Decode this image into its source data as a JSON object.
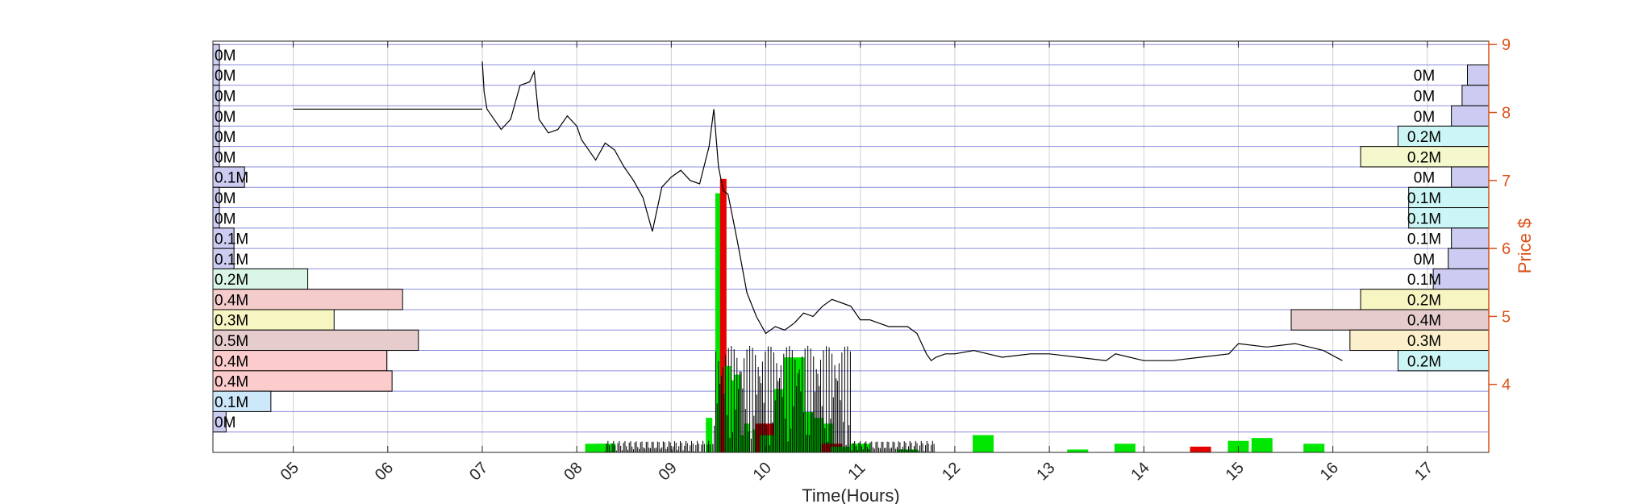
{
  "chart_data": {
    "type": "line",
    "xlabel": "Time(Hours)",
    "ylabel_right": "Price $",
    "x_ticks": [
      "05",
      "06",
      "07",
      "08",
      "09",
      "10",
      "11",
      "12",
      "13",
      "14",
      "15",
      "16",
      "17"
    ],
    "xlim": [
      4.15,
      17.65
    ],
    "y_ticks": [
      4,
      5,
      6,
      7,
      8,
      9
    ],
    "ylim": [
      3.0,
      9.05
    ],
    "grid": true,
    "price_series": {
      "x": [
        7.0,
        7.02,
        7.05,
        7.1,
        7.2,
        7.3,
        7.4,
        7.5,
        7.55,
        7.6,
        7.7,
        7.8,
        7.9,
        8.0,
        8.05,
        8.1,
        8.2,
        8.3,
        8.4,
        8.5,
        8.6,
        8.7,
        8.8,
        8.9,
        9.0,
        9.1,
        9.2,
        9.3,
        9.4,
        9.45,
        9.5,
        9.55,
        9.6,
        9.7,
        9.8,
        9.9,
        10.0,
        10.1,
        10.2,
        10.3,
        10.4,
        10.5,
        10.6,
        10.7,
        10.8,
        10.9,
        11.0,
        11.1,
        11.2,
        11.3,
        11.4,
        11.5,
        11.6,
        11.7,
        11.75,
        11.8,
        11.9,
        12.0,
        12.2,
        12.5,
        12.8,
        13.0,
        13.3,
        13.6,
        13.7,
        14.0,
        14.3,
        14.6,
        14.9,
        15.0,
        15.3,
        15.6,
        15.9,
        16.1
      ],
      "y": [
        8.75,
        8.3,
        8.05,
        7.95,
        7.75,
        7.9,
        8.4,
        8.45,
        8.6,
        7.9,
        7.7,
        7.75,
        7.95,
        7.8,
        7.6,
        7.5,
        7.3,
        7.55,
        7.45,
        7.2,
        7.0,
        6.75,
        6.25,
        6.9,
        7.05,
        7.15,
        7.0,
        6.95,
        7.5,
        8.05,
        7.2,
        6.85,
        6.8,
        6.1,
        5.35,
        5.0,
        4.75,
        4.85,
        4.8,
        4.9,
        5.05,
        5.0,
        5.15,
        5.25,
        5.2,
        5.15,
        4.95,
        4.95,
        4.9,
        4.85,
        4.85,
        4.85,
        4.75,
        4.45,
        4.35,
        4.4,
        4.45,
        4.45,
        4.5,
        4.4,
        4.45,
        4.45,
        4.4,
        4.35,
        4.45,
        4.35,
        4.35,
        4.4,
        4.45,
        4.6,
        4.55,
        4.6,
        4.5,
        4.35
      ]
    },
    "premarket_price": {
      "x": [
        5.0,
        7.0
      ],
      "y": [
        8.05,
        8.05
      ]
    },
    "volume_bars": {
      "x": [
        8.2,
        8.3,
        9.4,
        9.5,
        9.55,
        9.6,
        9.65,
        9.7,
        9.75,
        9.8,
        9.9,
        10.0,
        10.05,
        10.2,
        10.3,
        10.4,
        10.5,
        10.6,
        10.7,
        10.8,
        11.0,
        11.5,
        12.3,
        13.3,
        13.8,
        14.6,
        15.0,
        15.25,
        15.8
      ],
      "v": [
        0.03,
        0.03,
        0.12,
        0.9,
        0.95,
        0.3,
        0.25,
        0.27,
        0.06,
        0.1,
        0.08,
        0.1,
        0.06,
        0.22,
        0.33,
        0.14,
        0.12,
        0.1,
        0.03,
        0.02,
        0.03,
        0.01,
        0.06,
        0.01,
        0.03,
        0.02,
        0.04,
        0.05,
        0.03
      ],
      "up_color": "#00e600",
      "down_color": "#e60000"
    },
    "volume_profile_left": {
      "levels": [
        9.0,
        8.7,
        8.4,
        8.1,
        7.8,
        7.5,
        7.2,
        6.9,
        6.6,
        6.3,
        6.0,
        5.7,
        5.4,
        5.1,
        4.8,
        4.5,
        4.2,
        3.9,
        3.6
      ],
      "labels": [
        "0M",
        "0M",
        "0M",
        "0M",
        "0M",
        "0M",
        "0.1M",
        "0M",
        "0M",
        "0.1M",
        "0.1M",
        "0.2M",
        "0.4M",
        "0.3M",
        "0.5M",
        "0.4M",
        "0.4M",
        "0.1M",
        "0M"
      ],
      "values": [
        0.01,
        0.005,
        0.005,
        0.01,
        0.01,
        0.01,
        0.06,
        0.005,
        0.01,
        0.04,
        0.04,
        0.18,
        0.36,
        0.23,
        0.39,
        0.33,
        0.34,
        0.11,
        0.025
      ],
      "colors": [
        "#ccccf2",
        "#ccccf2",
        "#ccccf2",
        "#ccccf2",
        "#ccccf2",
        "#ccccf2",
        "#ccccf2",
        "#ccccf2",
        "#ccccf2",
        "#ccccf2",
        "#ccccf2",
        "#d9f5e6",
        "#f5cccc",
        "#f7f5c2",
        "#e6cccc",
        "#fccccc",
        "#fccccc",
        "#cce6fa",
        "#ccccf2"
      ]
    },
    "volume_profile_right": {
      "levels": [
        8.7,
        8.4,
        8.1,
        7.8,
        7.5,
        7.2,
        6.9,
        6.6,
        6.3,
        6.0,
        5.7,
        5.4,
        5.1,
        4.8,
        4.5
      ],
      "labels": [
        "0M",
        "0M",
        "0M",
        "0.2M",
        "0.2M",
        "0M",
        "0.1M",
        "0.1M",
        "0.1M",
        "0M",
        "0.1M",
        "0.2M",
        "0.4M",
        "0.3M",
        "0.2M"
      ],
      "values": [
        0.02,
        0.025,
        0.035,
        0.085,
        0.12,
        0.035,
        0.075,
        0.075,
        0.035,
        0.038,
        0.052,
        0.12,
        0.185,
        0.13,
        0.085
      ],
      "colors": [
        "#ccccf2",
        "#ccccf2",
        "#ccccf2",
        "#ccf5f5",
        "#f5f7cc",
        "#ccccf2",
        "#ccf5f5",
        "#ccf5f5",
        "#ccccf2",
        "#ccccf2",
        "#ccccf2",
        "#f7f5c2",
        "#e6cccc",
        "#fcf0cc",
        "#ccf5f5"
      ]
    },
    "colors": {
      "price_line": "#000000",
      "grid_h": "#8c8cdf",
      "grid_v": "#d0d0d0",
      "price_axis": "#d95319",
      "axes": "#262626"
    }
  }
}
